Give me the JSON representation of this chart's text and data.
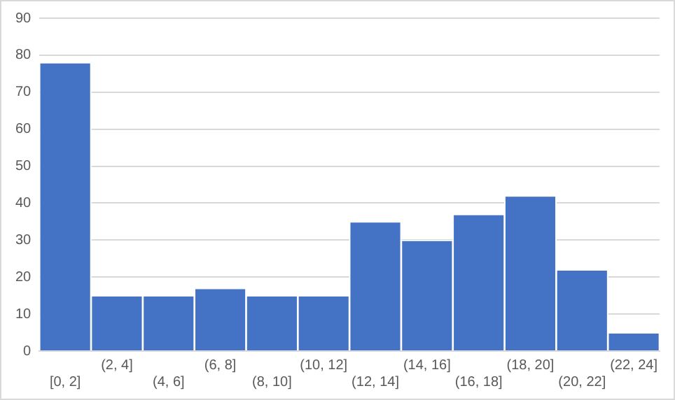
{
  "chart_data": {
    "type": "bar",
    "categories": [
      "[0, 2]",
      "(2, 4]",
      "(4, 6]",
      "(6, 8]",
      "(8, 10]",
      "(10, 12]",
      "(12, 14]",
      "(14, 16]",
      "(16, 18]",
      "(18, 20]",
      "(20, 22]",
      "(22, 24]"
    ],
    "values": [
      78,
      15,
      15,
      17,
      15,
      15,
      35,
      30,
      37,
      42,
      22,
      5
    ],
    "color": "#4472c4",
    "ylim": [
      0,
      90
    ],
    "yticks": [
      0,
      10,
      20,
      30,
      40,
      50,
      60,
      70,
      80,
      90
    ],
    "grid": "y"
  }
}
